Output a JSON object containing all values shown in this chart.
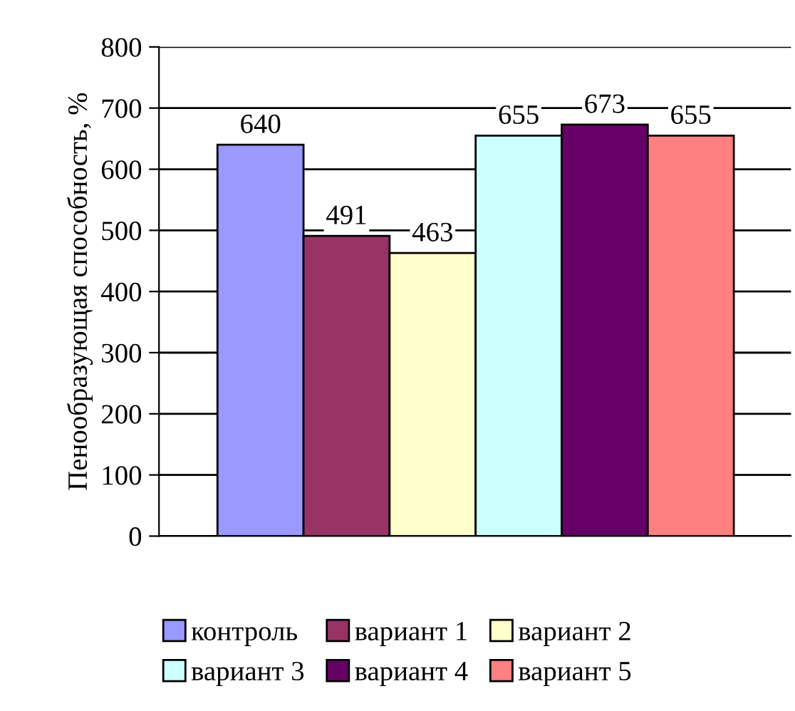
{
  "chart_data": {
    "type": "bar",
    "ylabel": "Пенообразующая способность, %",
    "categories": [
      null
    ],
    "series": [
      {
        "name": "контроль",
        "color": "#9999ff",
        "values": [
          640
        ]
      },
      {
        "name": "вариант 1",
        "color": "#993366",
        "values": [
          491
        ]
      },
      {
        "name": "вариант 2",
        "color": "#ffffcc",
        "values": [
          463
        ]
      },
      {
        "name": "вариант 3",
        "color": "#ccffff",
        "values": [
          655
        ]
      },
      {
        "name": "вариант 4",
        "color": "#660066",
        "values": [
          673
        ]
      },
      {
        "name": "вариант 5",
        "color": "#ff8080",
        "values": [
          655
        ]
      }
    ],
    "ylim": [
      0,
      800
    ],
    "yticks": [
      0,
      100,
      200,
      300,
      400,
      500,
      600,
      700,
      800
    ],
    "grid": "y",
    "legend": "bottom",
    "data_labels": true
  }
}
